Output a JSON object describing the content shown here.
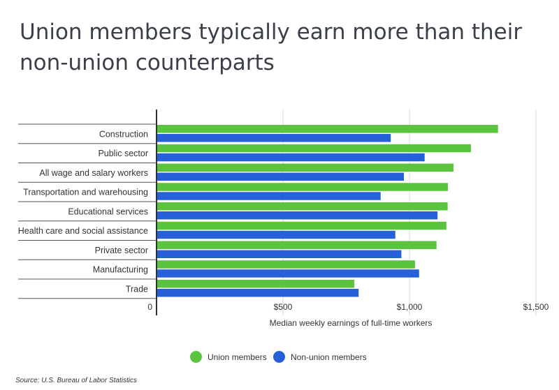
{
  "title": "Union members typically earn more than their non-union counterparts",
  "source": "Source:  U.S. Bureau of Labor Statistics",
  "colors": {
    "union": "#5ac43f",
    "nonunion": "#2661d9",
    "grid": "#d9d9d9",
    "axis": "#333333"
  },
  "chart_data": {
    "type": "bar",
    "orientation": "horizontal",
    "categories": [
      "Construction",
      "Public sector",
      "All wage and salary workers",
      "Transportation and warehousing",
      "Educational services",
      "Health care and social assistance",
      "Private sector",
      "Manufacturing",
      "Trade"
    ],
    "series": [
      {
        "name": "Union members",
        "values": [
          1350,
          1243,
          1174,
          1152,
          1151,
          1146,
          1107,
          1022,
          782
        ]
      },
      {
        "name": "Non-union members",
        "values": [
          926,
          1060,
          978,
          886,
          1111,
          944,
          968,
          1038,
          799
        ]
      }
    ],
    "xlabel": "Median weekly earnings of full-time workers",
    "xlim": [
      0,
      1500
    ],
    "xticks": [
      {
        "value": 0,
        "label": "0"
      },
      {
        "value": 500,
        "label": "$500"
      },
      {
        "value": 1000,
        "label": "$1,000"
      },
      {
        "value": 1500,
        "label": "$1,500"
      }
    ],
    "grid": true,
    "legend_position": "bottom"
  }
}
